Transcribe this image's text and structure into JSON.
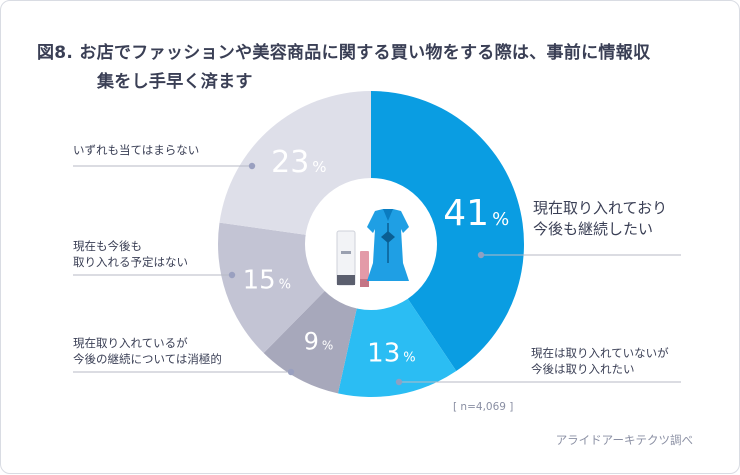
{
  "title_line1": "図8. お店でファッションや美容商品に関する買い物をする際は、事前に情報収",
  "title_line2": "集をし手早く済ます",
  "sample_note": "[ n=4,069 ]",
  "source": "アライドアーキテクツ調べ",
  "chart_data": {
    "type": "pie",
    "title": "図8. お店でファッションや美容商品に関する買い物をする際は、事前に情報収集をし手早く済ます",
    "unit": "%",
    "start": "12 o'clock, clockwise",
    "slices": [
      {
        "label": "現在取り入れており\n今後も継続したい",
        "value": 41,
        "color": "#0a9de2"
      },
      {
        "label": "現在は取り入れていないが\n今後は取り入れたい",
        "value": 13,
        "color": "#2bbdf3"
      },
      {
        "label": "現在取り入れているが\n今後の継続については消極的",
        "value": 9,
        "color": "#a7a8bb"
      },
      {
        "label": "現在も今後も\n取り入れる予定はない",
        "value": 15,
        "color": "#c3c4d4"
      },
      {
        "label": "いずれも当てはまらない",
        "value": 23,
        "color": "#dedfe9"
      }
    ]
  }
}
